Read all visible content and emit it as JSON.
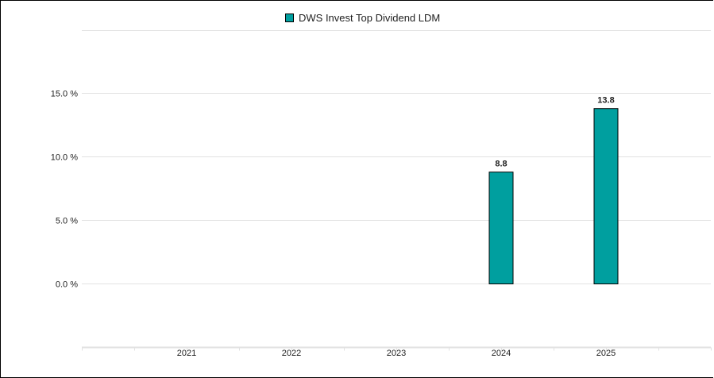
{
  "chart_data": {
    "type": "bar",
    "categories": [
      "2021",
      "2022",
      "2023",
      "2024",
      "2025"
    ],
    "series": [
      {
        "name": "DWS Invest Top Dividend LDM",
        "values": [
          null,
          null,
          null,
          8.8,
          13.8
        ],
        "data_labels": [
          "",
          "",
          "",
          "8.8",
          "13.8"
        ]
      }
    ],
    "ylim": [
      0,
      15
    ],
    "y_ticks": [
      0,
      5,
      10,
      15
    ],
    "y_tick_labels": [
      "0.0 %",
      "5.0 %",
      "10.0 %",
      "15.0 %"
    ],
    "grid": true,
    "legend_position": "top-center",
    "colors": {
      "bar": "#009f9f",
      "bar_border": "#000000",
      "grid": "#e2e2e2",
      "axis_text": "#222222"
    }
  }
}
